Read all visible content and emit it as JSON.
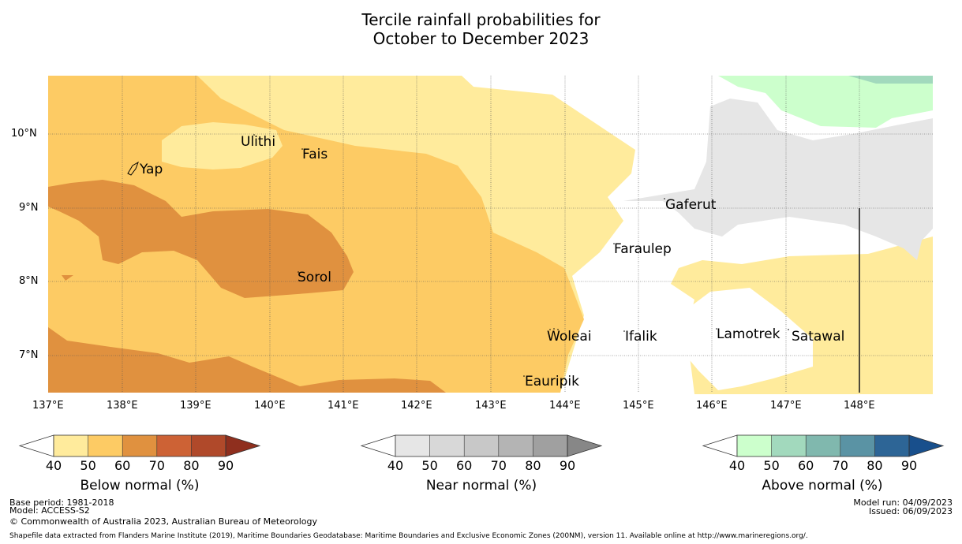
{
  "title": {
    "line1": "Tercile rainfall probabilities for",
    "line2": "October to December 2023"
  },
  "map": {
    "lon_labels": [
      "137°E",
      "138°E",
      "139°E",
      "140°E",
      "141°E",
      "142°E",
      "143°E",
      "144°E",
      "145°E",
      "146°E",
      "147°E",
      "148°E"
    ],
    "lat_labels": [
      "10°N",
      "9°N",
      "8°N",
      "7°N"
    ],
    "places": [
      "Ulithi",
      "Fais",
      "Yap",
      "Gaferut",
      "Faraulep",
      "Sorol",
      "Woleai",
      "Ifalik",
      "Lamotrek",
      "Satawal",
      "Eauripik"
    ]
  },
  "colorbars": {
    "below": {
      "label": "Below normal (%)",
      "ticks": [
        "40",
        "50",
        "60",
        "70",
        "80",
        "90"
      ],
      "colors": [
        "#ffffff",
        "#ffeb9c",
        "#fdcb64",
        "#e0913f",
        "#cd6235",
        "#b0492a",
        "#8f2f1e"
      ]
    },
    "near": {
      "label": "Near normal (%)",
      "ticks": [
        "40",
        "50",
        "60",
        "70",
        "80",
        "90"
      ],
      "colors": [
        "#ffffff",
        "#e6e6e6",
        "#d8d8d8",
        "#c8c8c8",
        "#b4b4b4",
        "#a0a0a0",
        "#878787"
      ]
    },
    "above": {
      "label": "Above normal (%)",
      "ticks": [
        "40",
        "50",
        "60",
        "70",
        "80",
        "90"
      ],
      "colors": [
        "#ffffff",
        "#ccffcc",
        "#a2d9bd",
        "#80b8ae",
        "#5a93a4",
        "#2d6596",
        "#184f8c"
      ]
    }
  },
  "footer": {
    "base_period": "Base period: 1981-2018",
    "model": "Model: ACCESS-S2",
    "copyright": "© Commonwealth of Australia 2023, Australian Bureau of Meteorology",
    "shapefile": "Shapefile data extracted from Flanders Marine Institute (2019), Maritime Boundaries Geodatabase: Maritime Boundaries and Exclusive Economic Zones (200NM), version 11. Available online at http://www.marineregions.org/.",
    "model_run": "Model run: 04/09/2023",
    "issued": "Issued: 06/09/2023"
  }
}
